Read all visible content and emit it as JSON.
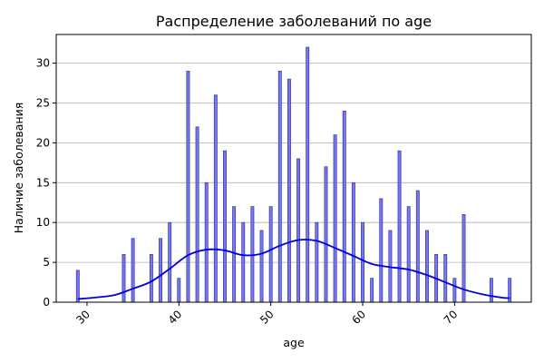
{
  "chart_data": {
    "type": "bar",
    "title": "Распределение заболеваний по age",
    "xlabel": "age",
    "ylabel": "Наличие заболевания",
    "xlim": [
      26.65,
      78.35
    ],
    "ylim": [
      0,
      33.6
    ],
    "xticks": [
      30,
      40,
      50,
      60,
      70
    ],
    "yticks": [
      0,
      5,
      10,
      15,
      20,
      25,
      30
    ],
    "grid": "y",
    "bar_color": "#7777ee",
    "bar_edge_color": "#3333aa",
    "kde_color": "#0000dd",
    "x": [
      29,
      34,
      35,
      37,
      38,
      39,
      40,
      41,
      42,
      43,
      44,
      45,
      46,
      47,
      48,
      49,
      50,
      51,
      52,
      53,
      54,
      55,
      56,
      57,
      58,
      59,
      60,
      61,
      62,
      63,
      64,
      65,
      66,
      67,
      68,
      69,
      70,
      71,
      74,
      76
    ],
    "values": [
      4,
      6,
      8,
      6,
      8,
      10,
      3,
      29,
      22,
      15,
      26,
      19,
      12,
      10,
      12,
      9,
      12,
      29,
      28,
      18,
      32,
      10,
      17,
      21,
      24,
      15,
      10,
      3,
      13,
      9,
      19,
      12,
      14,
      9,
      6,
      6,
      3,
      11,
      3,
      3
    ],
    "kde": {
      "x": [
        29,
        31,
        33,
        35,
        37,
        39,
        41,
        43,
        45,
        47,
        49,
        51,
        53,
        55,
        57,
        59,
        61,
        63,
        65,
        67,
        69,
        71,
        73,
        75,
        76
      ],
      "y": [
        0.4,
        0.6,
        0.9,
        1.7,
        2.6,
        4.2,
        5.9,
        6.6,
        6.5,
        5.9,
        6.1,
        7.1,
        7.8,
        7.7,
        6.8,
        5.8,
        4.8,
        4.4,
        4.1,
        3.4,
        2.5,
        1.6,
        1.0,
        0.6,
        0.5
      ]
    }
  }
}
